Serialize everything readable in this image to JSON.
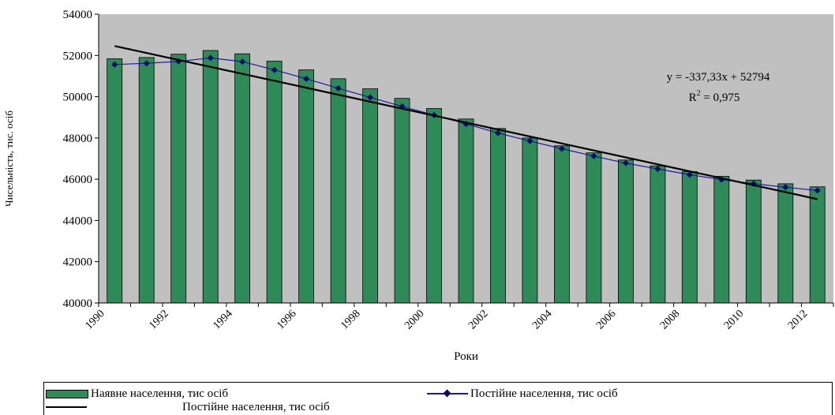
{
  "chart_data": {
    "type": "bar",
    "title": "",
    "xlabel": "Роки",
    "ylabel": "Чисельність, тис. осіб",
    "ylim": [
      40000,
      54000
    ],
    "yticks": [
      40000,
      42000,
      44000,
      46000,
      48000,
      50000,
      52000,
      54000
    ],
    "x": [
      1990,
      1991,
      1992,
      1993,
      1994,
      1995,
      1996,
      1997,
      1998,
      1999,
      2000,
      2001,
      2002,
      2003,
      2004,
      2005,
      2006,
      2007,
      2008,
      2009,
      2010,
      2011,
      2012
    ],
    "xtick_labels": [
      "1990",
      "1992",
      "1994",
      "1996",
      "1998",
      "2000",
      "2002",
      "2004",
      "2006",
      "2008",
      "2010",
      "2012"
    ],
    "series": [
      {
        "name": "Наявне населення, тис осіб",
        "kind": "bar",
        "color": "#2e8b57",
        "values": [
          51840,
          51900,
          52060,
          52240,
          52080,
          51720,
          51300,
          50870,
          50380,
          49920,
          49430,
          48920,
          48460,
          48000,
          47620,
          47280,
          46930,
          46650,
          46370,
          46140,
          45960,
          45780,
          45630
        ]
      },
      {
        "name": "Постійне населення, тис осіб",
        "kind": "line",
        "color": "#1a1aa0",
        "marker": "diamond",
        "values": [
          51560,
          51620,
          51710,
          51880,
          51700,
          51300,
          50870,
          50410,
          49970,
          49530,
          49110,
          48680,
          48240,
          47850,
          47480,
          47120,
          46780,
          46500,
          46220,
          45980,
          45780,
          45610,
          45450
        ]
      },
      {
        "name": "Постійне населення, тис осіб",
        "kind": "trendline",
        "color": "#000000",
        "equation": "y = -337,33x + 52794",
        "slope": -337.33,
        "intercept": 52794
      }
    ],
    "annotation": {
      "equation": "y = -337,33x + 52794",
      "r2_label": "R",
      "r2_sup": "2",
      "r2_value": " = 0,975"
    },
    "plot_background": "#c0c0c0",
    "grid": false,
    "legend_position": "bottom"
  }
}
